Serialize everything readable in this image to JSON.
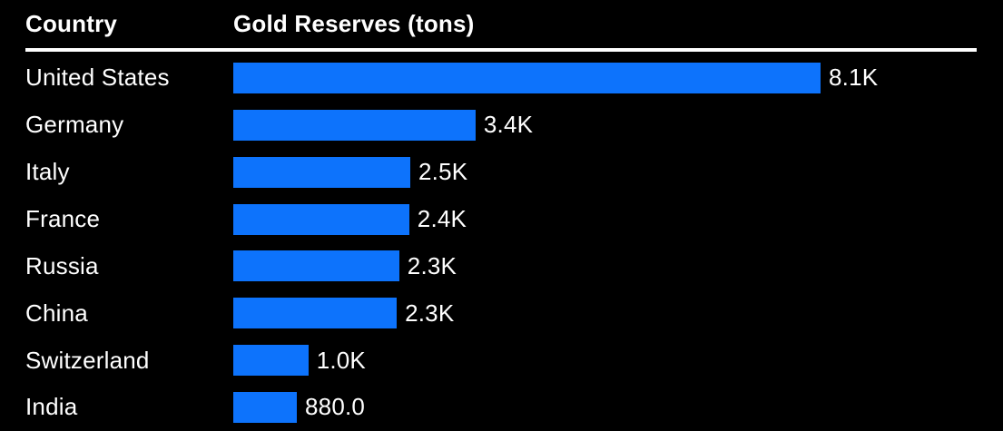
{
  "header": {
    "country": "Country",
    "value": "Gold Reserves (tons)"
  },
  "colors": {
    "background": "#000000",
    "bar": "#0d73fc",
    "text": "#ffffff",
    "divider": "#ffffff"
  },
  "chart_data": {
    "type": "bar",
    "orientation": "horizontal",
    "title": "",
    "xlabel": "Gold Reserves (tons)",
    "ylabel": "Country",
    "categories": [
      "United States",
      "Germany",
      "Italy",
      "France",
      "Russia",
      "China",
      "Switzerland",
      "India"
    ],
    "values": [
      8133.5,
      3355.1,
      2451.8,
      2436.9,
      2298.5,
      2264.3,
      1040.0,
      880.0
    ],
    "value_labels": [
      "8.1K",
      "3.4K",
      "2.5K",
      "2.4K",
      "2.3K",
      "2.3K",
      "1.0K",
      "880.0"
    ],
    "xlim": [
      0,
      8133.5
    ],
    "grid": false,
    "legend": false
  }
}
